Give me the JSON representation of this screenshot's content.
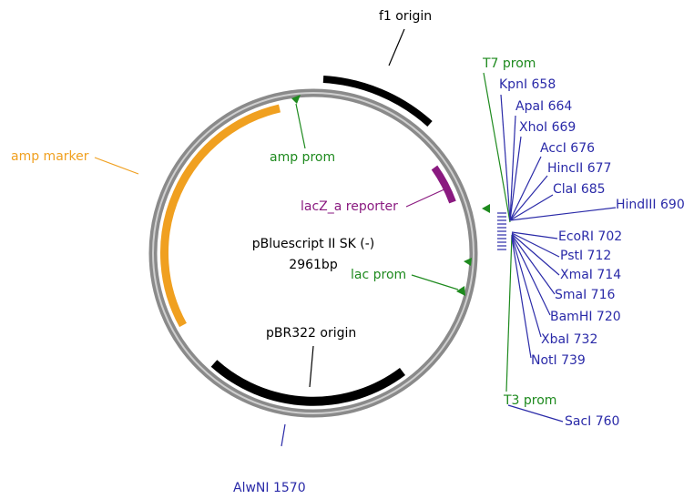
{
  "map": {
    "name": "pBluescript II SK (-)",
    "length": "2961bp"
  },
  "features": [
    {
      "label": "f1 origin"
    },
    {
      "label": "amp marker"
    },
    {
      "label": "amp prom"
    },
    {
      "label": "lacZ_a reporter"
    },
    {
      "label": "lac prom"
    },
    {
      "label": "pBR322 origin"
    },
    {
      "label": "T7 prom"
    },
    {
      "label": "T3 prom"
    }
  ],
  "sites": [
    {
      "label": "KpnI 658"
    },
    {
      "label": "ApaI 664"
    },
    {
      "label": "XhoI 669"
    },
    {
      "label": "AccI 676"
    },
    {
      "label": "HincII 677"
    },
    {
      "label": "ClaI 685"
    },
    {
      "label": "HindIII 690"
    },
    {
      "label": "EcoRI 702"
    },
    {
      "label": "PstI 712"
    },
    {
      "label": "XmaI 714"
    },
    {
      "label": "SmaI 716"
    },
    {
      "label": "BamHI 720"
    },
    {
      "label": "XbaI 732"
    },
    {
      "label": "NotI 739"
    },
    {
      "label": "SacI 760"
    },
    {
      "label": "AlwNI 1570"
    }
  ]
}
